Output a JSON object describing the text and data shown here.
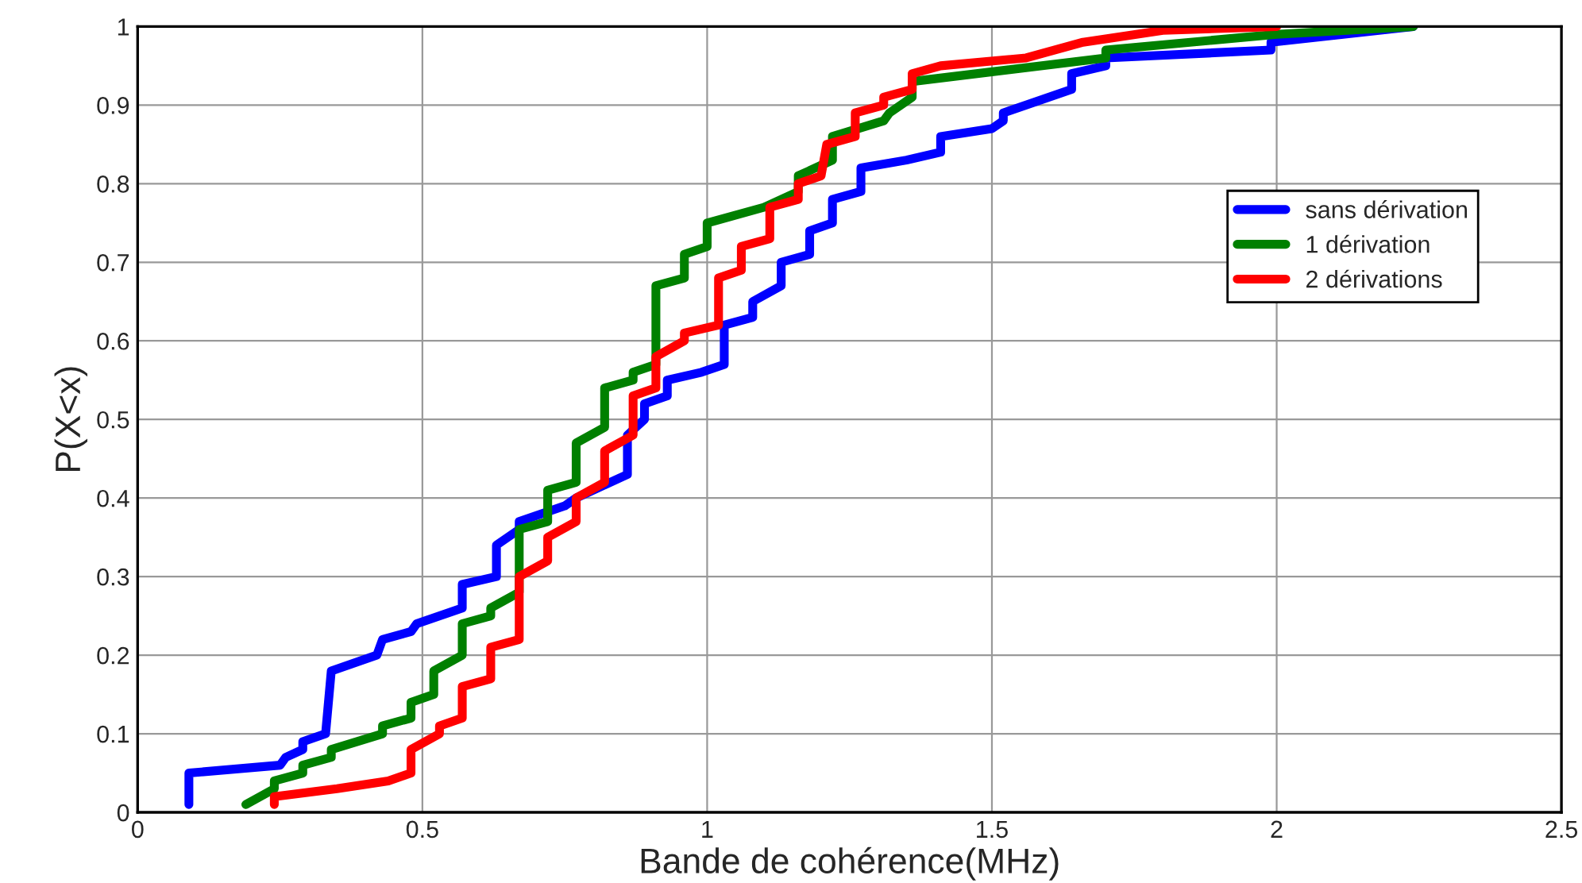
{
  "chart_data": {
    "type": "line",
    "xlabel": "Bande de cohérence(MHz)",
    "ylabel": "P(X<x)",
    "xlim": [
      0,
      2.5
    ],
    "ylim": [
      0,
      1
    ],
    "xticks": [
      0,
      0.5,
      1,
      1.5,
      2,
      2.5
    ],
    "yticks": [
      0,
      0.1,
      0.2,
      0.3,
      0.4,
      0.5,
      0.6,
      0.7,
      0.8,
      0.9,
      1
    ],
    "grid": true,
    "legend": "right",
    "line_style": "solid",
    "marker": "none",
    "series": [
      {
        "name": "sans dérivation",
        "color": "#0000ff",
        "x": [
          0.09,
          0.09,
          0.25,
          0.26,
          0.29,
          0.29,
          0.33,
          0.34,
          0.42,
          0.43,
          0.48,
          0.49,
          0.57,
          0.57,
          0.63,
          0.63,
          0.67,
          0.67,
          0.75,
          0.77,
          0.86,
          0.86,
          0.89,
          0.89,
          0.93,
          0.93,
          0.99,
          1.03,
          1.03,
          1.08,
          1.08,
          1.13,
          1.13,
          1.18,
          1.18,
          1.22,
          1.22,
          1.27,
          1.27,
          1.35,
          1.41,
          1.41,
          1.5,
          1.52,
          1.52,
          1.64,
          1.64,
          1.7,
          1.7,
          1.99,
          1.99,
          2.24
        ],
        "values": [
          0.01,
          0.05,
          0.06,
          0.07,
          0.08,
          0.09,
          0.1,
          0.18,
          0.2,
          0.22,
          0.23,
          0.24,
          0.26,
          0.29,
          0.3,
          0.34,
          0.36,
          0.37,
          0.39,
          0.4,
          0.43,
          0.48,
          0.5,
          0.52,
          0.53,
          0.55,
          0.56,
          0.57,
          0.62,
          0.63,
          0.65,
          0.67,
          0.7,
          0.71,
          0.74,
          0.75,
          0.78,
          0.79,
          0.82,
          0.83,
          0.84,
          0.86,
          0.87,
          0.88,
          0.89,
          0.92,
          0.94,
          0.95,
          0.96,
          0.97,
          0.98,
          1.0
        ]
      },
      {
        "name": "1 dérivation",
        "color": "#008000",
        "x": [
          0.19,
          0.24,
          0.24,
          0.29,
          0.29,
          0.34,
          0.34,
          0.43,
          0.43,
          0.48,
          0.48,
          0.52,
          0.52,
          0.57,
          0.57,
          0.62,
          0.62,
          0.67,
          0.67,
          0.72,
          0.72,
          0.77,
          0.77,
          0.82,
          0.82,
          0.87,
          0.87,
          0.91,
          0.91,
          0.96,
          0.96,
          1.0,
          1.0,
          1.1,
          1.16,
          1.16,
          1.22,
          1.22,
          1.31,
          1.32,
          1.36,
          1.36,
          1.7,
          1.7,
          2.0,
          2.24
        ],
        "values": [
          0.01,
          0.03,
          0.04,
          0.05,
          0.06,
          0.07,
          0.08,
          0.1,
          0.11,
          0.12,
          0.14,
          0.15,
          0.18,
          0.2,
          0.24,
          0.25,
          0.26,
          0.28,
          0.36,
          0.37,
          0.41,
          0.42,
          0.47,
          0.49,
          0.54,
          0.55,
          0.56,
          0.57,
          0.67,
          0.68,
          0.71,
          0.72,
          0.75,
          0.77,
          0.79,
          0.81,
          0.83,
          0.86,
          0.88,
          0.89,
          0.91,
          0.93,
          0.96,
          0.97,
          0.99,
          1.0
        ]
      },
      {
        "name": "2 dérivations",
        "color": "#ff0000",
        "x": [
          0.24,
          0.24,
          0.35,
          0.44,
          0.48,
          0.48,
          0.53,
          0.53,
          0.57,
          0.57,
          0.62,
          0.62,
          0.67,
          0.67,
          0.72,
          0.72,
          0.77,
          0.77,
          0.82,
          0.82,
          0.87,
          0.87,
          0.91,
          0.91,
          0.96,
          0.96,
          1.02,
          1.02,
          1.06,
          1.06,
          1.11,
          1.11,
          1.16,
          1.16,
          1.2,
          1.21,
          1.26,
          1.26,
          1.31,
          1.31,
          1.36,
          1.36,
          1.41,
          1.56,
          1.66,
          1.8,
          2.0
        ],
        "values": [
          0.01,
          0.02,
          0.03,
          0.04,
          0.05,
          0.08,
          0.1,
          0.11,
          0.12,
          0.16,
          0.17,
          0.21,
          0.22,
          0.3,
          0.32,
          0.35,
          0.37,
          0.4,
          0.42,
          0.46,
          0.48,
          0.53,
          0.54,
          0.58,
          0.6,
          0.61,
          0.62,
          0.68,
          0.69,
          0.72,
          0.73,
          0.77,
          0.78,
          0.8,
          0.81,
          0.85,
          0.86,
          0.89,
          0.9,
          0.91,
          0.92,
          0.94,
          0.95,
          0.96,
          0.98,
          0.995,
          1.0
        ]
      }
    ]
  }
}
